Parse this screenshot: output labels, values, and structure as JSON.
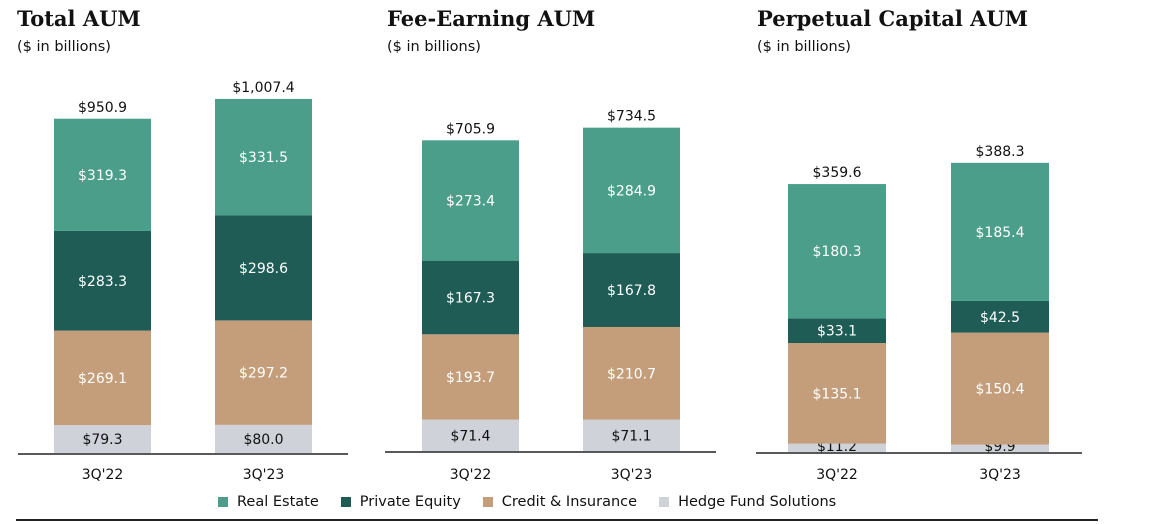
{
  "colors": {
    "real_estate": "#4a9e8a",
    "private_equity": "#1e5c55",
    "credit_insurance": "#c49e7b",
    "hedge_fund": "#cfd3d9",
    "bar_label_light": "#ffffff",
    "bar_label_dark": "#111111"
  },
  "legend": {
    "items": [
      {
        "label": "Real Estate",
        "color": "#4a9e8a"
      },
      {
        "label": "Private Equity",
        "color": "#1e5c55"
      },
      {
        "label": "Credit & Insurance",
        "color": "#c49e7b"
      },
      {
        "label": "Hedge Fund Solutions",
        "color": "#cfd3d9"
      }
    ]
  },
  "chart_data": [
    {
      "type": "bar",
      "stacked": true,
      "title": "Total AUM",
      "subtitle": "($ in billions)",
      "categories": [
        "3Q'22",
        "3Q'23"
      ],
      "totals": [
        950.9,
        1007.4
      ],
      "total_labels": [
        "$950.9",
        "$1,007.4"
      ],
      "series": [
        {
          "name": "Hedge Fund Solutions",
          "values": [
            79.3,
            80.0
          ],
          "labels": [
            "$79.3",
            "$80.0"
          ]
        },
        {
          "name": "Credit & Insurance",
          "values": [
            269.1,
            297.2
          ],
          "labels": [
            "$269.1",
            "$297.2"
          ]
        },
        {
          "name": "Private Equity",
          "values": [
            283.3,
            298.6
          ],
          "labels": [
            "$283.3",
            "$298.6"
          ]
        },
        {
          "name": "Real Estate",
          "values": [
            319.3,
            331.5
          ],
          "labels": [
            "$319.3",
            "$331.5"
          ]
        }
      ]
    },
    {
      "type": "bar",
      "stacked": true,
      "title": "Fee-Earning AUM",
      "subtitle": "($ in billions)",
      "categories": [
        "3Q'22",
        "3Q'23"
      ],
      "totals": [
        705.9,
        734.5
      ],
      "total_labels": [
        "$705.9",
        "$734.5"
      ],
      "series": [
        {
          "name": "Hedge Fund Solutions",
          "values": [
            71.4,
            71.1
          ],
          "labels": [
            "$71.4",
            "$71.1"
          ]
        },
        {
          "name": "Credit & Insurance",
          "values": [
            193.7,
            210.7
          ],
          "labels": [
            "$193.7",
            "$210.7"
          ]
        },
        {
          "name": "Private Equity",
          "values": [
            167.3,
            167.8
          ],
          "labels": [
            "$167.3",
            "$167.8"
          ]
        },
        {
          "name": "Real Estate",
          "values": [
            273.4,
            284.9
          ],
          "labels": [
            "$273.4",
            "$284.9"
          ]
        }
      ]
    },
    {
      "type": "bar",
      "stacked": true,
      "title": "Perpetual Capital AUM",
      "subtitle": "($ in billions)",
      "categories": [
        "3Q'22",
        "3Q'23"
      ],
      "totals": [
        359.6,
        388.3
      ],
      "total_labels": [
        "$359.6",
        "$388.3"
      ],
      "series": [
        {
          "name": "Hedge Fund Solutions",
          "values": [
            11.2,
            9.9
          ],
          "labels": [
            "$11.2",
            "$9.9"
          ]
        },
        {
          "name": "Credit & Insurance",
          "values": [
            135.1,
            150.4
          ],
          "labels": [
            "$135.1",
            "$150.4"
          ]
        },
        {
          "name": "Private Equity",
          "values": [
            33.1,
            42.5
          ],
          "labels": [
            "$33.1",
            "$42.5"
          ]
        },
        {
          "name": "Real Estate",
          "values": [
            180.3,
            185.4
          ],
          "labels": [
            "$180.3",
            "$185.4"
          ]
        }
      ]
    }
  ]
}
